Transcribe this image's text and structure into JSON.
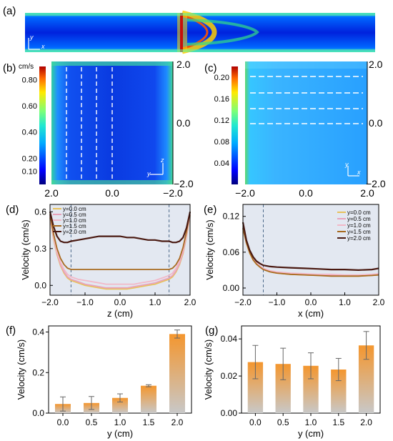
{
  "panel_labels": [
    "(a)",
    "(b)",
    "(c)",
    "(d)",
    "(e)",
    "(f)",
    "(g)"
  ],
  "panel_a": {
    "axis_labels": {
      "x": "x",
      "y": "y"
    }
  },
  "panel_b": {
    "unit": "cm/s",
    "colorbar_ticks": [
      "0.80",
      "0.60",
      "0.40",
      "0.20",
      "0.10"
    ],
    "colorbar_values": [
      0.8,
      0.6,
      0.4,
      0.2,
      0.1
    ],
    "colorbar_range": [
      0.0,
      0.9
    ],
    "x_ticks": [
      "2.0",
      "0.0",
      "−2.0"
    ],
    "right_ticks": [
      "2.0",
      "0.0",
      "−2.0"
    ],
    "axis_labels": {
      "a": "y",
      "b": "z"
    }
  },
  "panel_c": {
    "colorbar_ticks": [
      "0.20",
      "0.16",
      "0.12",
      "0.08",
      "0.04"
    ],
    "colorbar_values": [
      0.2,
      0.16,
      0.12,
      0.08,
      0.04
    ],
    "colorbar_range": [
      0.0,
      0.22
    ],
    "x_ticks": [
      "−2.0",
      "0.0",
      "2.0"
    ],
    "right_ticks": [
      "2.0",
      "0.0",
      "−2.0"
    ],
    "axis_labels": {
      "a": "y",
      "b": "x"
    }
  },
  "colors": {
    "y0": "#e7c15c",
    "y05": "#e8a3bc",
    "y10": "#f2b8c8",
    "y15": "#a86a1f",
    "y20": "#4a1a12",
    "shade": "#e3e8f1",
    "bar_top": "#f4962e",
    "bar_bottom": "#c8c8c8"
  },
  "chart_data": [
    {
      "panel": "(d)",
      "type": "line",
      "xlabel": "z (cm)",
      "ylabel": "Velocity (cm/s)",
      "xlim": [
        -2.0,
        2.0
      ],
      "ylim": [
        -0.08,
        0.66
      ],
      "x_ticks": [
        "−2.0",
        "−1.0",
        "0.0",
        "1.0",
        "2.0"
      ],
      "y_ticks": [
        "0.0",
        "0.3",
        "0.6"
      ],
      "y_tick_values": [
        0.0,
        0.3,
        0.6
      ],
      "dashed_lines_x": [
        -1.4,
        1.4
      ],
      "legend_position": "top-left",
      "x": [
        -2.0,
        -1.9,
        -1.8,
        -1.7,
        -1.6,
        -1.5,
        -1.4,
        -1.2,
        -1.0,
        -0.8,
        -0.6,
        -0.4,
        -0.2,
        0.0,
        0.2,
        0.4,
        0.6,
        0.8,
        1.0,
        1.2,
        1.4,
        1.5,
        1.6,
        1.7,
        1.8,
        1.9,
        2.0
      ],
      "series": [
        {
          "name": "y=0.0 cm",
          "values": [
            0.55,
            0.38,
            0.25,
            0.16,
            0.1,
            0.06,
            0.04,
            0.02,
            0.0,
            -0.01,
            -0.02,
            -0.03,
            -0.03,
            -0.03,
            -0.03,
            -0.02,
            -0.01,
            0.0,
            0.01,
            0.03,
            0.05,
            0.07,
            0.11,
            0.17,
            0.26,
            0.4,
            0.57
          ]
        },
        {
          "name": "y=0.5 cm",
          "values": [
            0.56,
            0.39,
            0.26,
            0.17,
            0.11,
            0.07,
            0.05,
            0.03,
            0.01,
            0.0,
            -0.01,
            -0.02,
            -0.02,
            -0.02,
            -0.02,
            -0.01,
            0.0,
            0.01,
            0.02,
            0.04,
            0.06,
            0.08,
            0.12,
            0.18,
            0.27,
            0.41,
            0.58
          ]
        },
        {
          "name": "y=1.0 cm",
          "values": [
            0.57,
            0.4,
            0.27,
            0.19,
            0.13,
            0.09,
            0.07,
            0.05,
            0.04,
            0.03,
            0.02,
            0.01,
            0.01,
            0.01,
            0.01,
            0.01,
            0.02,
            0.03,
            0.04,
            0.06,
            0.08,
            0.1,
            0.14,
            0.2,
            0.29,
            0.42,
            0.58
          ]
        },
        {
          "name": "y=1.5 cm",
          "values": [
            0.58,
            0.42,
            0.3,
            0.22,
            0.17,
            0.14,
            0.13,
            0.13,
            0.13,
            0.13,
            0.13,
            0.13,
            0.13,
            0.13,
            0.13,
            0.13,
            0.13,
            0.13,
            0.13,
            0.13,
            0.13,
            0.14,
            0.17,
            0.22,
            0.31,
            0.44,
            0.6
          ]
        },
        {
          "name": "y=2.0 cm",
          "values": [
            0.6,
            0.48,
            0.4,
            0.36,
            0.35,
            0.35,
            0.36,
            0.37,
            0.38,
            0.39,
            0.4,
            0.4,
            0.4,
            0.4,
            0.39,
            0.39,
            0.38,
            0.37,
            0.37,
            0.36,
            0.36,
            0.35,
            0.35,
            0.36,
            0.39,
            0.47,
            0.6
          ]
        }
      ]
    },
    {
      "panel": "(e)",
      "type": "line",
      "xlabel": "x (cm)",
      "ylabel": "Velocity (cm/s)",
      "xlim": [
        -2.0,
        2.0
      ],
      "ylim": [
        -0.012,
        0.14
      ],
      "x_ticks": [
        "−2.0",
        "−1.0",
        "0.0",
        "1.0",
        "2.0"
      ],
      "y_ticks": [
        "0.00",
        "0.06",
        "0.12"
      ],
      "y_tick_values": [
        0.0,
        0.06,
        0.12
      ],
      "dashed_lines_x": [
        -1.4
      ],
      "legend_position": "top-right",
      "x": [
        -2.0,
        -1.9,
        -1.8,
        -1.7,
        -1.6,
        -1.5,
        -1.4,
        -1.2,
        -1.0,
        -0.6,
        -0.2,
        0.2,
        0.6,
        1.0,
        1.4,
        1.8,
        2.0
      ],
      "series": [
        {
          "name": "y=0.0 cm",
          "values": [
            0.1,
            0.075,
            0.058,
            0.047,
            0.04,
            0.035,
            0.031,
            0.027,
            0.025,
            0.023,
            0.022,
            0.021,
            0.021,
            0.02,
            0.02,
            0.021,
            0.022
          ]
        },
        {
          "name": "y=0.5 cm",
          "values": [
            0.1,
            0.076,
            0.059,
            0.048,
            0.041,
            0.036,
            0.032,
            0.028,
            0.026,
            0.024,
            0.023,
            0.022,
            0.022,
            0.021,
            0.021,
            0.022,
            0.023
          ]
        },
        {
          "name": "y=1.0 cm",
          "values": [
            0.1,
            0.077,
            0.06,
            0.049,
            0.042,
            0.037,
            0.033,
            0.029,
            0.027,
            0.025,
            0.024,
            0.023,
            0.023,
            0.022,
            0.022,
            0.023,
            0.024
          ]
        },
        {
          "name": "y=1.5 cm",
          "values": [
            0.1,
            0.076,
            0.059,
            0.047,
            0.04,
            0.035,
            0.031,
            0.027,
            0.025,
            0.023,
            0.022,
            0.021,
            0.02,
            0.02,
            0.02,
            0.021,
            0.022
          ]
        },
        {
          "name": "y=2.0 cm",
          "values": [
            0.11,
            0.08,
            0.063,
            0.052,
            0.045,
            0.041,
            0.038,
            0.036,
            0.035,
            0.034,
            0.033,
            0.032,
            0.031,
            0.031,
            0.03,
            0.031,
            0.033
          ]
        }
      ]
    },
    {
      "panel": "(f)",
      "type": "bar",
      "xlabel": "y (cm)",
      "ylabel": "Velocity (cm/s)",
      "categories": [
        "0.0",
        "0.5",
        "1.0",
        "1.5",
        "2.0"
      ],
      "values": [
        0.045,
        0.05,
        0.075,
        0.135,
        0.39
      ],
      "errors": [
        0.035,
        0.032,
        0.02,
        0.005,
        0.02
      ],
      "ylim": [
        0,
        0.43
      ],
      "y_ticks": [
        "0.0",
        "0.2",
        "0.4"
      ],
      "y_tick_values": [
        0.0,
        0.2,
        0.4
      ]
    },
    {
      "panel": "(g)",
      "type": "bar",
      "xlabel": "y (cm)",
      "ylabel": "Velocity (cm/s)",
      "categories": [
        "0.0",
        "0.5",
        "1.0",
        "1.5",
        "2.0"
      ],
      "values": [
        0.0275,
        0.0265,
        0.0255,
        0.0235,
        0.0365
      ],
      "errors": [
        0.009,
        0.0085,
        0.007,
        0.006,
        0.0075
      ],
      "ylim": [
        0,
        0.047
      ],
      "y_ticks": [
        "0.00",
        "0.02",
        "0.04"
      ],
      "y_tick_values": [
        0.0,
        0.02,
        0.04
      ]
    }
  ]
}
